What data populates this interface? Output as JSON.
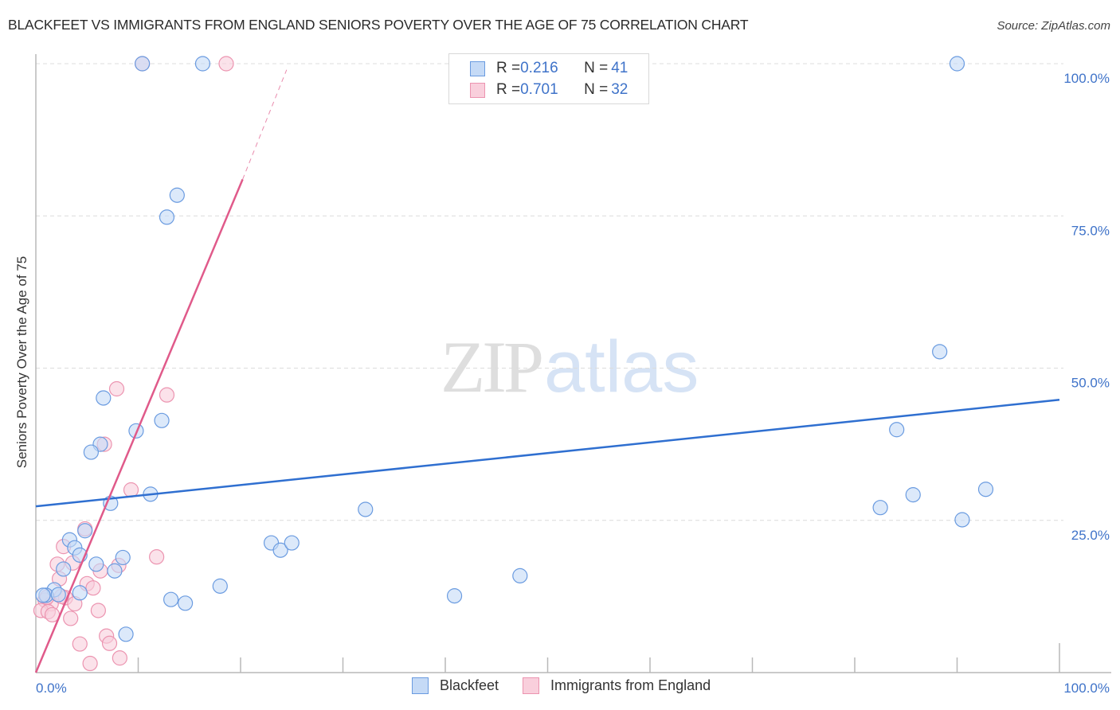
{
  "header": {
    "title": "BLACKFEET VS IMMIGRANTS FROM ENGLAND SENIORS POVERTY OVER THE AGE OF 75 CORRELATION CHART",
    "source": "Source: ZipAtlas.com"
  },
  "watermark": {
    "zip": "ZIP",
    "atlas": "atlas"
  },
  "legend_top": {
    "rows": [
      {
        "r_label": "R = ",
        "r_value": "0.216",
        "n_label": "N = ",
        "n_value": "41",
        "color": "#6fa0e6"
      },
      {
        "r_label": "R = ",
        "r_value": "0.701",
        "n_label": "N = ",
        "n_value": "32",
        "color": "#ef8fad"
      }
    ]
  },
  "legend_bottom": {
    "items": [
      {
        "label": "Blackfeet"
      },
      {
        "label": "Immigrants from England"
      }
    ]
  },
  "axes": {
    "ylabel": "Seniors Poverty Over the Age of 75",
    "x_ticks": [
      "0.0%",
      "100.0%"
    ],
    "y_ticks": [
      "100.0%",
      "75.0%",
      "50.0%",
      "25.0%"
    ]
  },
  "colors": {
    "blue_line": "#2f6fd0",
    "pink_line": "#e05a8a",
    "blue_fill": "#c5daf6",
    "blue_stroke": "#6a9be0",
    "pink_fill": "#f9cfdc",
    "pink_stroke": "#ec94b0",
    "tick_label": "#3f73c9"
  },
  "chart_data": {
    "type": "scatter",
    "title": "BLACKFEET VS IMMIGRANTS FROM ENGLAND SENIORS POVERTY OVER THE AGE OF 75 CORRELATION CHART",
    "xlabel": "",
    "ylabel": "Seniors Poverty Over the Age of 75",
    "xlim": [
      0,
      100
    ],
    "ylim": [
      0,
      100
    ],
    "x_tick_labels": [
      "0.0%",
      "100.0%"
    ],
    "y_tick_labels": [
      "25.0%",
      "50.0%",
      "75.0%",
      "100.0%"
    ],
    "grid": "horizontal dashed at 25, 50, 75, 100",
    "legend_position": "top-center and bottom",
    "series": [
      {
        "name": "Blackfeet",
        "R": 0.216,
        "N": 41,
        "trendline": {
          "x": [
            0,
            100
          ],
          "y": [
            27.3,
            44.8
          ]
        },
        "points": [
          [
            10.4,
            100
          ],
          [
            16.3,
            100
          ],
          [
            90.0,
            100
          ],
          [
            13.8,
            78.4
          ],
          [
            12.8,
            74.8
          ],
          [
            88.3,
            52.7
          ],
          [
            6.6,
            45.1
          ],
          [
            12.3,
            41.4
          ],
          [
            9.8,
            39.7
          ],
          [
            6.3,
            37.5
          ],
          [
            5.4,
            36.2
          ],
          [
            84.1,
            39.9
          ],
          [
            11.2,
            29.3
          ],
          [
            7.3,
            27.8
          ],
          [
            32.2,
            26.8
          ],
          [
            92.8,
            30.1
          ],
          [
            85.7,
            29.2
          ],
          [
            82.5,
            27.1
          ],
          [
            90.5,
            25.1
          ],
          [
            4.8,
            23.3
          ],
          [
            3.3,
            21.8
          ],
          [
            3.8,
            20.5
          ],
          [
            4.3,
            19.3
          ],
          [
            8.5,
            18.9
          ],
          [
            23.0,
            21.3
          ],
          [
            23.9,
            20.1
          ],
          [
            25.0,
            21.3
          ],
          [
            5.9,
            17.8
          ],
          [
            2.7,
            17.0
          ],
          [
            7.7,
            16.7
          ],
          [
            47.3,
            15.9
          ],
          [
            18.0,
            14.2
          ],
          [
            1.8,
            13.6
          ],
          [
            1.0,
            12.7
          ],
          [
            4.3,
            13.1
          ],
          [
            0.7,
            12.7
          ],
          [
            13.2,
            12.0
          ],
          [
            14.6,
            11.4
          ],
          [
            40.9,
            12.6
          ],
          [
            8.8,
            6.3
          ],
          [
            2.2,
            12.8
          ]
        ]
      },
      {
        "name": "Immigrants from England",
        "R": 0.701,
        "N": 32,
        "trendline": {
          "x": [
            0,
            20.2
          ],
          "y": [
            0,
            81.0
          ],
          "dashed_extension": {
            "x": [
              20.2,
              24.5
            ],
            "y": [
              81.0,
              99.0
            ]
          }
        },
        "points": [
          [
            10.4,
            100
          ],
          [
            18.6,
            100
          ],
          [
            7.9,
            46.6
          ],
          [
            12.8,
            45.6
          ],
          [
            6.7,
            37.5
          ],
          [
            9.3,
            30.0
          ],
          [
            11.8,
            19.0
          ],
          [
            4.8,
            23.6
          ],
          [
            2.7,
            20.7
          ],
          [
            2.1,
            17.8
          ],
          [
            3.6,
            18.0
          ],
          [
            6.3,
            16.7
          ],
          [
            8.1,
            17.6
          ],
          [
            2.3,
            15.4
          ],
          [
            5.0,
            14.6
          ],
          [
            5.6,
            13.9
          ],
          [
            2.9,
            12.3
          ],
          [
            0.9,
            11.9
          ],
          [
            1.5,
            11.3
          ],
          [
            0.5,
            10.2
          ],
          [
            1.2,
            10.0
          ],
          [
            3.8,
            11.3
          ],
          [
            6.1,
            10.2
          ],
          [
            1.6,
            9.5
          ],
          [
            3.4,
            8.9
          ],
          [
            6.9,
            6.0
          ],
          [
            4.3,
            4.7
          ],
          [
            7.2,
            4.8
          ],
          [
            8.2,
            2.4
          ],
          [
            5.3,
            1.5
          ],
          [
            1.1,
            12.4
          ],
          [
            2.5,
            12.5
          ]
        ]
      }
    ]
  }
}
